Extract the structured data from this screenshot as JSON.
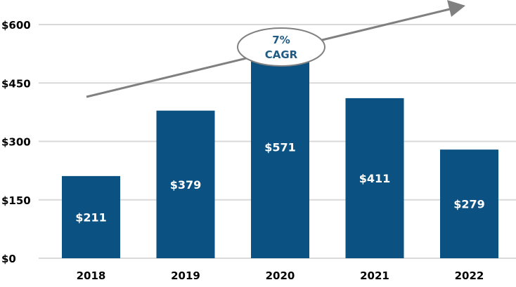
{
  "chart_data": {
    "type": "bar",
    "title": "",
    "xlabel": "",
    "ylabel": "",
    "categories": [
      "2018",
      "2019",
      "2020",
      "2021",
      "2022"
    ],
    "values": [
      211,
      379,
      571,
      411,
      279
    ],
    "data_labels": [
      "$211",
      "$379",
      "$571",
      "$411",
      "$279"
    ],
    "ylim": [
      0,
      600
    ],
    "yticks": [
      0,
      150,
      300,
      450,
      600
    ],
    "ytick_labels": [
      "$0",
      "$150",
      "$300",
      "$450",
      "$600"
    ],
    "grid": true,
    "annotation": {
      "line1": "7%",
      "line2": "CAGR",
      "type": "upward trend arrow"
    },
    "colors": {
      "bar": "#0b5283",
      "grid": "#d9d9d9",
      "arrow": "#808080",
      "annotation_text": "#1f5b85",
      "label": "#000000"
    }
  }
}
